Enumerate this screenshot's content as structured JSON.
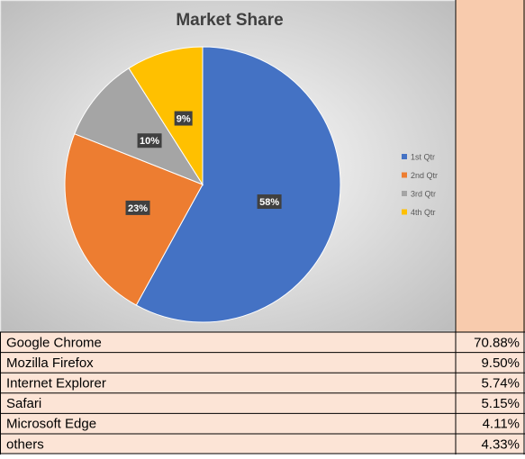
{
  "chart_data": {
    "type": "pie",
    "title": "Market Share",
    "categories": [
      "1st Qtr",
      "2nd Qtr",
      "3rd Qtr",
      "4th Qtr"
    ],
    "values": [
      58,
      23,
      10,
      9
    ],
    "value_labels": [
      "58%",
      "23%",
      "10%",
      "9%"
    ],
    "colors": [
      "#4472c4",
      "#ed7d31",
      "#a5a5a5",
      "#ffc000"
    ],
    "legend": "right"
  },
  "table": {
    "rows": [
      [
        "Google Chrome",
        "70.88%"
      ],
      [
        "Mozilla Firefox",
        "9.50%"
      ],
      [
        "Internet Explorer",
        "5.74%"
      ],
      [
        "Safari",
        "5.15%"
      ],
      [
        "Microsoft Edge",
        "4.11%"
      ],
      [
        "others",
        "4.33%"
      ]
    ]
  }
}
